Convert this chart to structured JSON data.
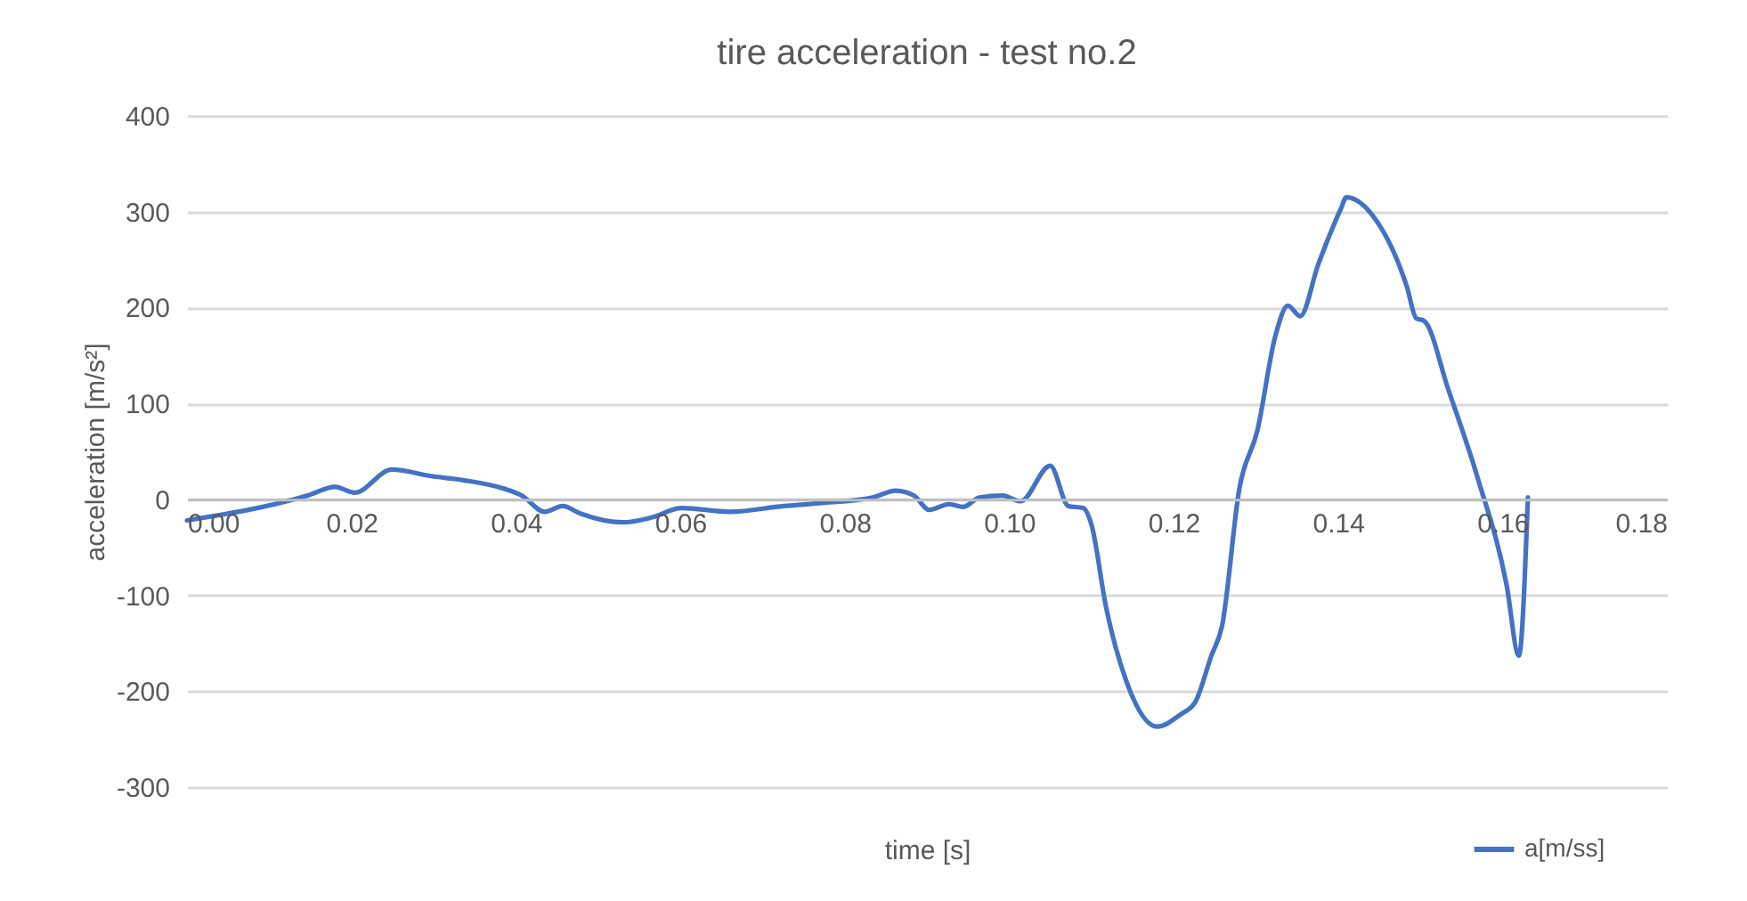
{
  "chart_data": {
    "type": "line",
    "title": "tire acceleration - test no.2",
    "xlabel": "time [s]",
    "ylabel": "acceleration [m/s²]",
    "x": [
      0,
      0.0147,
      0.018,
      0.0204,
      0.0249,
      0.0299,
      0.0336,
      0.0386,
      0.0407,
      0.0435,
      0.0457,
      0.0479,
      0.053,
      0.0565,
      0.0602,
      0.066,
      0.0726,
      0.0769,
      0.0834,
      0.0862,
      0.0884,
      0.0903,
      0.0927,
      0.0944,
      0.0964,
      0.0992,
      0.1014,
      0.105,
      0.1072,
      0.109,
      0.11,
      0.1118,
      0.1144,
      0.118,
      0.1209,
      0.1226,
      0.1246,
      0.1259,
      0.128,
      0.1302,
      0.1324,
      0.1339,
      0.1354,
      0.1376,
      0.1404,
      0.141,
      0.1443,
      0.1484,
      0.1495,
      0.1505,
      0.1534,
      0.157,
      0.1605,
      0.162,
      0.1631
    ],
    "series": [
      {
        "name": "a[m/ss]",
        "color": "#4472c4",
        "values": [
          -22,
          4,
          13,
          7,
          31,
          24,
          20,
          11,
          4,
          -13,
          -7,
          -15,
          -24,
          -19,
          -9,
          -13,
          -7,
          -4,
          2,
          9,
          4,
          -11,
          -5,
          -8,
          2,
          4,
          -2,
          35,
          -7,
          -9,
          -26,
          -113,
          -193,
          -237,
          -224,
          -212,
          -163,
          -132,
          11,
          72,
          171,
          202,
          191,
          245,
          304,
          315,
          295,
          221,
          189,
          186,
          115,
          22,
          -89,
          -163,
          2
        ]
      }
    ],
    "xlim": [
      0,
      0.18
    ],
    "xticks": [
      {
        "value": 0,
        "label": "0.00"
      },
      {
        "value": 0.02,
        "label": "0.02"
      },
      {
        "value": 0.04,
        "label": "0.04"
      },
      {
        "value": 0.06,
        "label": "0.06"
      },
      {
        "value": 0.08,
        "label": "0.08"
      },
      {
        "value": 0.1,
        "label": "0.10"
      },
      {
        "value": 0.12,
        "label": "0.12"
      },
      {
        "value": 0.14,
        "label": "0.14"
      },
      {
        "value": 0.16,
        "label": "0.16"
      },
      {
        "value": 0.18,
        "label": "0.18"
      }
    ],
    "ylim": [
      -300,
      400
    ],
    "yticks": [
      -300,
      -200,
      -100,
      0,
      100,
      200,
      300,
      400
    ],
    "grid": "y",
    "legend": "bottom right",
    "marker": "none",
    "line_style": "solid"
  }
}
